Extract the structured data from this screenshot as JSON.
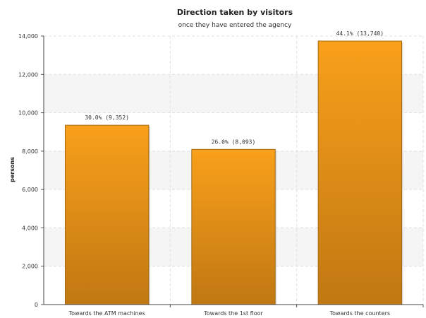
{
  "chart_data": {
    "type": "bar",
    "title": "Direction taken by visitors",
    "subtitle": "once they have entered the agency",
    "xlabel": "",
    "ylabel": "persons",
    "categories": [
      "Towards the ATM machines",
      "Towards the 1st floor",
      "Towards the counters"
    ],
    "values": [
      9352,
      8093,
      13740
    ],
    "data_labels": [
      "30.0% (9,352)",
      "26.0% (8,093)",
      "44.1% (13,740)"
    ],
    "ylim": [
      0,
      14000
    ],
    "yticks": [
      0,
      2000,
      4000,
      6000,
      8000,
      10000,
      12000,
      14000
    ],
    "ytick_labels": [
      "0",
      "2,000",
      "4,000",
      "6,000",
      "8,000",
      "10,000",
      "12,000",
      "14,000"
    ],
    "grid": true,
    "legend": "none",
    "colors": {
      "bar_top": "#f9a01b",
      "bar_bottom": "#c07812",
      "bar_edge": "#a86a10",
      "band": "#f5f5f5",
      "grid": "#e0e0e0"
    }
  }
}
